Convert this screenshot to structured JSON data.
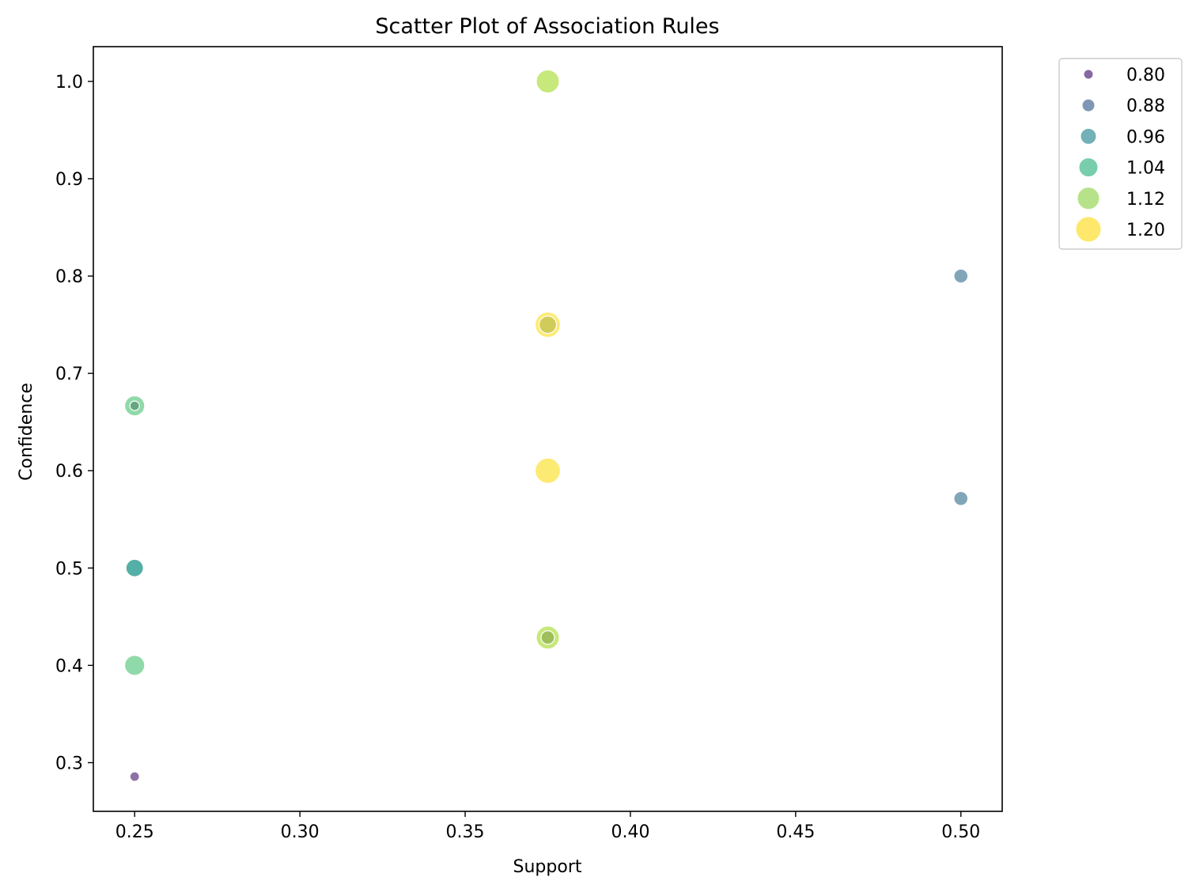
{
  "chart_data": {
    "type": "scatter",
    "title": "Scatter Plot of Association Rules",
    "xlabel": "Support",
    "ylabel": "Confidence",
    "xlim": [
      0.2375,
      0.5125
    ],
    "ylim": [
      0.25,
      1.0357
    ],
    "xticks": [
      0.25,
      0.3,
      0.35,
      0.4,
      0.45,
      0.5
    ],
    "xtick_labels": [
      "0.25",
      "0.30",
      "0.35",
      "0.40",
      "0.45",
      "0.50"
    ],
    "yticks": [
      0.3,
      0.4,
      0.5,
      0.6,
      0.7,
      0.8,
      0.9,
      1.0
    ],
    "ytick_labels": [
      "0.3",
      "0.4",
      "0.5",
      "0.6",
      "0.7",
      "0.8",
      "0.9",
      "1.0"
    ],
    "grid": false,
    "hue_and_size": "lift",
    "legend": {
      "placement": "outside-upper-right",
      "entries": [
        {
          "label": "0.80",
          "value": 0.8,
          "color": "#7b5896"
        },
        {
          "label": "0.88",
          "value": 0.88,
          "color": "#708cae"
        },
        {
          "label": "0.96",
          "value": 0.96,
          "color": "#64a7b0"
        },
        {
          "label": "1.04",
          "value": 1.04,
          "color": "#69c9a3"
        },
        {
          "label": "1.12",
          "value": 1.12,
          "color": "#aee07c"
        },
        {
          "label": "1.20",
          "value": 1.2,
          "color": "#fde65b"
        }
      ]
    },
    "points": [
      {
        "x": 0.375,
        "y": 1.0,
        "lift": 1.143,
        "color": "#bde463"
      },
      {
        "x": 0.5,
        "y": 0.8,
        "lift": 0.914,
        "color": "#6b96ab"
      },
      {
        "x": 0.375,
        "y": 0.75,
        "lift": 1.2,
        "color": "#fde65b"
      },
      {
        "x": 0.375,
        "y": 0.75,
        "lift": 1.0,
        "color": "#c9c555"
      },
      {
        "x": 0.25,
        "y": 0.6667,
        "lift": 1.067,
        "color": "#7dd29a"
      },
      {
        "x": 0.25,
        "y": 0.6667,
        "lift": 0.8,
        "color": "#5e9e78"
      },
      {
        "x": 0.375,
        "y": 0.6,
        "lift": 1.2,
        "color": "#fde65b"
      },
      {
        "x": 0.5,
        "y": 0.5714,
        "lift": 0.914,
        "color": "#6b96ab"
      },
      {
        "x": 0.25,
        "y": 0.5,
        "lift": 1.0,
        "color": "#36a196"
      },
      {
        "x": 0.375,
        "y": 0.4286,
        "lift": 1.143,
        "color": "#bde463"
      },
      {
        "x": 0.375,
        "y": 0.4286,
        "lift": 0.9,
        "color": "#97b757"
      },
      {
        "x": 0.25,
        "y": 0.4,
        "lift": 1.067,
        "color": "#7dd29a"
      },
      {
        "x": 0.25,
        "y": 0.2857,
        "lift": 0.8,
        "color": "#7b5896"
      }
    ]
  }
}
